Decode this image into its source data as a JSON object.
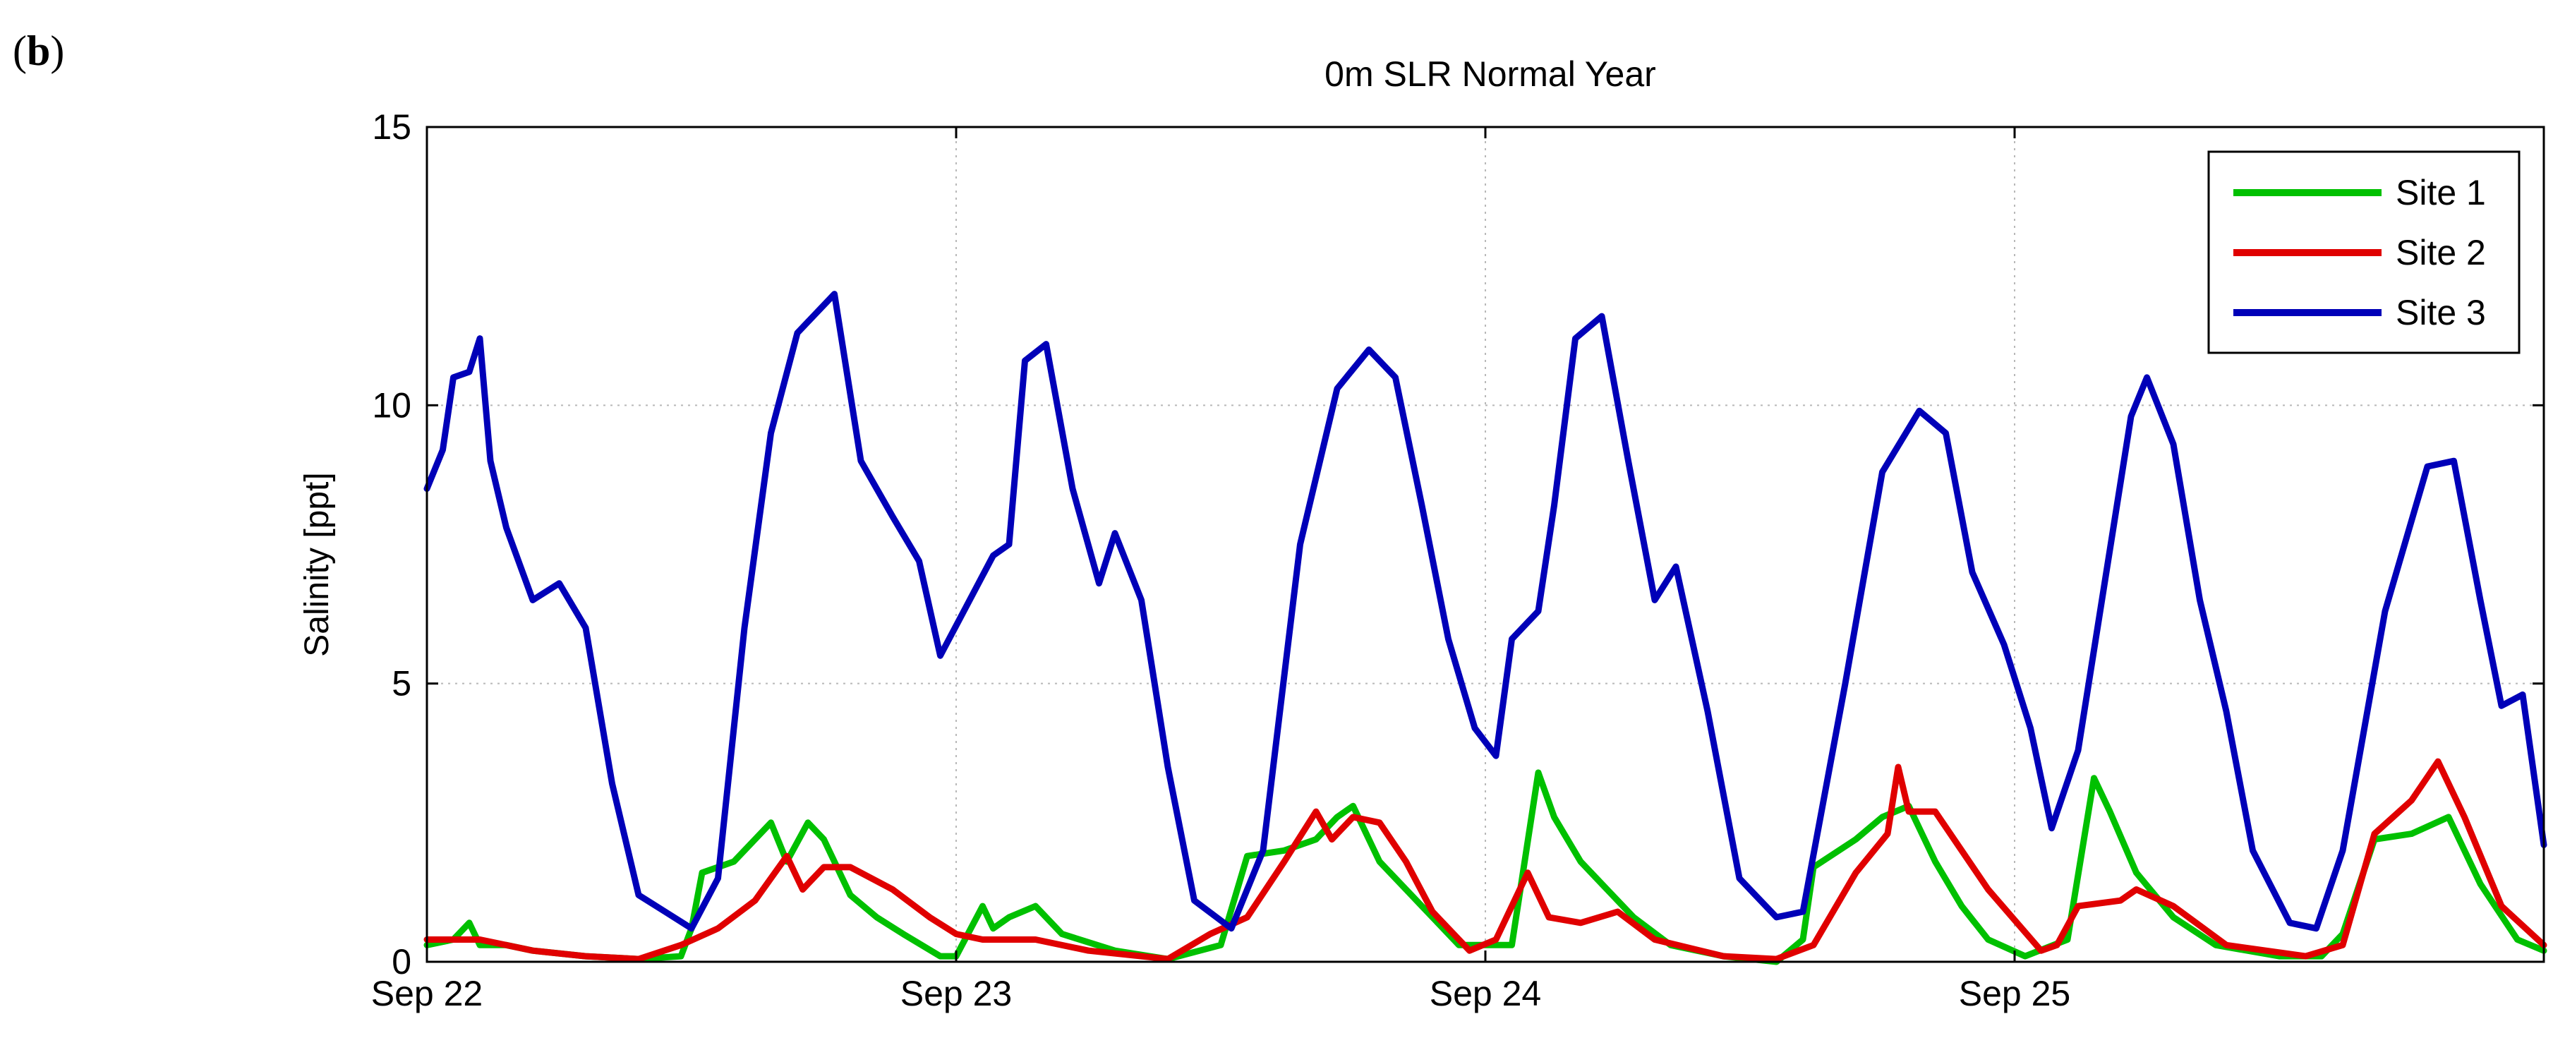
{
  "figure": {
    "panel_label": {
      "open": "(",
      "letter": "b",
      "close": ")"
    }
  },
  "chart_data": {
    "type": "line",
    "title": "0m SLR Normal Year",
    "xlabel": "",
    "ylabel": "Salinity [ppt]",
    "xlim": [
      0,
      4
    ],
    "ylim": [
      0,
      15
    ],
    "x_unit": "days since Sep 22 00:00",
    "x_ticks": [
      {
        "value": 0,
        "label": "Sep 22"
      },
      {
        "value": 1,
        "label": "Sep 23"
      },
      {
        "value": 2,
        "label": "Sep 24"
      },
      {
        "value": 3,
        "label": "Sep 25"
      }
    ],
    "y_ticks": [
      {
        "value": 0,
        "label": "0"
      },
      {
        "value": 5,
        "label": "5"
      },
      {
        "value": 10,
        "label": "10"
      },
      {
        "value": 15,
        "label": "15"
      }
    ],
    "grid": true,
    "legend_position": "top-right",
    "series": [
      {
        "name": "Site 1",
        "color": "#00c000",
        "points": [
          [
            0.0,
            0.3
          ],
          [
            0.05,
            0.4
          ],
          [
            0.08,
            0.7
          ],
          [
            0.1,
            0.3
          ],
          [
            0.15,
            0.3
          ],
          [
            0.2,
            0.2
          ],
          [
            0.3,
            0.1
          ],
          [
            0.4,
            0.05
          ],
          [
            0.48,
            0.1
          ],
          [
            0.5,
            0.6
          ],
          [
            0.52,
            1.6
          ],
          [
            0.58,
            1.8
          ],
          [
            0.65,
            2.5
          ],
          [
            0.68,
            1.8
          ],
          [
            0.72,
            2.5
          ],
          [
            0.75,
            2.2
          ],
          [
            0.8,
            1.2
          ],
          [
            0.85,
            0.8
          ],
          [
            0.9,
            0.5
          ],
          [
            0.97,
            0.1
          ],
          [
            1.0,
            0.1
          ],
          [
            1.05,
            1.0
          ],
          [
            1.07,
            0.6
          ],
          [
            1.1,
            0.8
          ],
          [
            1.15,
            1.0
          ],
          [
            1.2,
            0.5
          ],
          [
            1.3,
            0.2
          ],
          [
            1.4,
            0.05
          ],
          [
            1.5,
            0.3
          ],
          [
            1.55,
            1.9
          ],
          [
            1.62,
            2.0
          ],
          [
            1.68,
            2.2
          ],
          [
            1.72,
            2.6
          ],
          [
            1.75,
            2.8
          ],
          [
            1.8,
            1.8
          ],
          [
            1.88,
            1.0
          ],
          [
            1.95,
            0.3
          ],
          [
            2.05,
            0.3
          ],
          [
            2.1,
            3.4
          ],
          [
            2.13,
            2.6
          ],
          [
            2.18,
            1.8
          ],
          [
            2.22,
            1.4
          ],
          [
            2.28,
            0.8
          ],
          [
            2.35,
            0.3
          ],
          [
            2.45,
            0.1
          ],
          [
            2.55,
            0.0
          ],
          [
            2.6,
            0.4
          ],
          [
            2.62,
            1.7
          ],
          [
            2.7,
            2.2
          ],
          [
            2.75,
            2.6
          ],
          [
            2.8,
            2.8
          ],
          [
            2.85,
            1.8
          ],
          [
            2.9,
            1.0
          ],
          [
            2.95,
            0.4
          ],
          [
            3.02,
            0.1
          ],
          [
            3.1,
            0.4
          ],
          [
            3.15,
            3.3
          ],
          [
            3.18,
            2.7
          ],
          [
            3.23,
            1.6
          ],
          [
            3.3,
            0.8
          ],
          [
            3.38,
            0.3
          ],
          [
            3.5,
            0.1
          ],
          [
            3.58,
            0.1
          ],
          [
            3.62,
            0.5
          ],
          [
            3.68,
            2.2
          ],
          [
            3.75,
            2.3
          ],
          [
            3.82,
            2.6
          ],
          [
            3.88,
            1.4
          ],
          [
            3.95,
            0.4
          ],
          [
            4.0,
            0.2
          ]
        ]
      },
      {
        "name": "Site 2",
        "color": "#e00000",
        "points": [
          [
            0.0,
            0.4
          ],
          [
            0.1,
            0.4
          ],
          [
            0.2,
            0.2
          ],
          [
            0.3,
            0.1
          ],
          [
            0.4,
            0.05
          ],
          [
            0.48,
            0.3
          ],
          [
            0.55,
            0.6
          ],
          [
            0.62,
            1.1
          ],
          [
            0.68,
            1.9
          ],
          [
            0.71,
            1.3
          ],
          [
            0.75,
            1.7
          ],
          [
            0.8,
            1.7
          ],
          [
            0.88,
            1.3
          ],
          [
            0.95,
            0.8
          ],
          [
            1.0,
            0.5
          ],
          [
            1.05,
            0.4
          ],
          [
            1.15,
            0.4
          ],
          [
            1.25,
            0.2
          ],
          [
            1.4,
            0.05
          ],
          [
            1.48,
            0.5
          ],
          [
            1.55,
            0.8
          ],
          [
            1.62,
            1.8
          ],
          [
            1.68,
            2.7
          ],
          [
            1.71,
            2.2
          ],
          [
            1.75,
            2.6
          ],
          [
            1.8,
            2.5
          ],
          [
            1.85,
            1.8
          ],
          [
            1.9,
            0.9
          ],
          [
            1.97,
            0.2
          ],
          [
            2.02,
            0.4
          ],
          [
            2.08,
            1.6
          ],
          [
            2.12,
            0.8
          ],
          [
            2.18,
            0.7
          ],
          [
            2.25,
            0.9
          ],
          [
            2.32,
            0.4
          ],
          [
            2.45,
            0.1
          ],
          [
            2.55,
            0.05
          ],
          [
            2.62,
            0.3
          ],
          [
            2.7,
            1.6
          ],
          [
            2.76,
            2.3
          ],
          [
            2.78,
            3.5
          ],
          [
            2.8,
            2.7
          ],
          [
            2.85,
            2.7
          ],
          [
            2.9,
            2.0
          ],
          [
            2.95,
            1.3
          ],
          [
            3.05,
            0.2
          ],
          [
            3.08,
            0.3
          ],
          [
            3.12,
            1.0
          ],
          [
            3.2,
            1.1
          ],
          [
            3.23,
            1.3
          ],
          [
            3.3,
            1.0
          ],
          [
            3.4,
            0.3
          ],
          [
            3.55,
            0.1
          ],
          [
            3.62,
            0.3
          ],
          [
            3.68,
            2.3
          ],
          [
            3.75,
            2.9
          ],
          [
            3.8,
            3.6
          ],
          [
            3.85,
            2.6
          ],
          [
            3.92,
            1.0
          ],
          [
            4.0,
            0.3
          ]
        ]
      },
      {
        "name": "Site 3",
        "color": "#0000b8",
        "points": [
          [
            0.0,
            8.5
          ],
          [
            0.03,
            9.2
          ],
          [
            0.05,
            10.5
          ],
          [
            0.08,
            10.6
          ],
          [
            0.1,
            11.2
          ],
          [
            0.12,
            9.0
          ],
          [
            0.15,
            7.8
          ],
          [
            0.2,
            6.5
          ],
          [
            0.25,
            6.8
          ],
          [
            0.3,
            6.0
          ],
          [
            0.35,
            3.2
          ],
          [
            0.4,
            1.2
          ],
          [
            0.45,
            0.9
          ],
          [
            0.5,
            0.6
          ],
          [
            0.55,
            1.5
          ],
          [
            0.6,
            6.0
          ],
          [
            0.65,
            9.5
          ],
          [
            0.7,
            11.3
          ],
          [
            0.77,
            12.0
          ],
          [
            0.82,
            9.0
          ],
          [
            0.88,
            8.0
          ],
          [
            0.93,
            7.2
          ],
          [
            0.97,
            5.5
          ],
          [
            1.02,
            6.4
          ],
          [
            1.07,
            7.3
          ],
          [
            1.1,
            7.5
          ],
          [
            1.13,
            10.8
          ],
          [
            1.17,
            11.1
          ],
          [
            1.22,
            8.5
          ],
          [
            1.27,
            6.8
          ],
          [
            1.3,
            7.7
          ],
          [
            1.35,
            6.5
          ],
          [
            1.4,
            3.5
          ],
          [
            1.45,
            1.1
          ],
          [
            1.52,
            0.6
          ],
          [
            1.58,
            2.0
          ],
          [
            1.65,
            7.5
          ],
          [
            1.72,
            10.3
          ],
          [
            1.78,
            11.0
          ],
          [
            1.83,
            10.5
          ],
          [
            1.88,
            8.2
          ],
          [
            1.93,
            5.8
          ],
          [
            1.98,
            4.2
          ],
          [
            2.02,
            3.7
          ],
          [
            2.05,
            5.8
          ],
          [
            2.1,
            6.3
          ],
          [
            2.13,
            8.2
          ],
          [
            2.17,
            11.2
          ],
          [
            2.22,
            11.6
          ],
          [
            2.27,
            9.0
          ],
          [
            2.32,
            6.5
          ],
          [
            2.36,
            7.1
          ],
          [
            2.42,
            4.5
          ],
          [
            2.48,
            1.5
          ],
          [
            2.55,
            0.8
          ],
          [
            2.6,
            0.9
          ],
          [
            2.68,
            5.0
          ],
          [
            2.75,
            8.8
          ],
          [
            2.82,
            9.9
          ],
          [
            2.87,
            9.5
          ],
          [
            2.92,
            7.0
          ],
          [
            2.98,
            5.7
          ],
          [
            3.03,
            4.2
          ],
          [
            3.07,
            2.4
          ],
          [
            3.12,
            3.8
          ],
          [
            3.17,
            6.8
          ],
          [
            3.22,
            9.8
          ],
          [
            3.25,
            10.5
          ],
          [
            3.3,
            9.3
          ],
          [
            3.35,
            6.5
          ],
          [
            3.4,
            4.5
          ],
          [
            3.45,
            2.0
          ],
          [
            3.52,
            0.7
          ],
          [
            3.57,
            0.6
          ],
          [
            3.62,
            2.0
          ],
          [
            3.7,
            6.3
          ],
          [
            3.78,
            8.9
          ],
          [
            3.83,
            9.0
          ],
          [
            3.88,
            6.5
          ],
          [
            3.92,
            4.6
          ],
          [
            3.96,
            4.8
          ],
          [
            4.0,
            2.1
          ]
        ]
      }
    ]
  }
}
